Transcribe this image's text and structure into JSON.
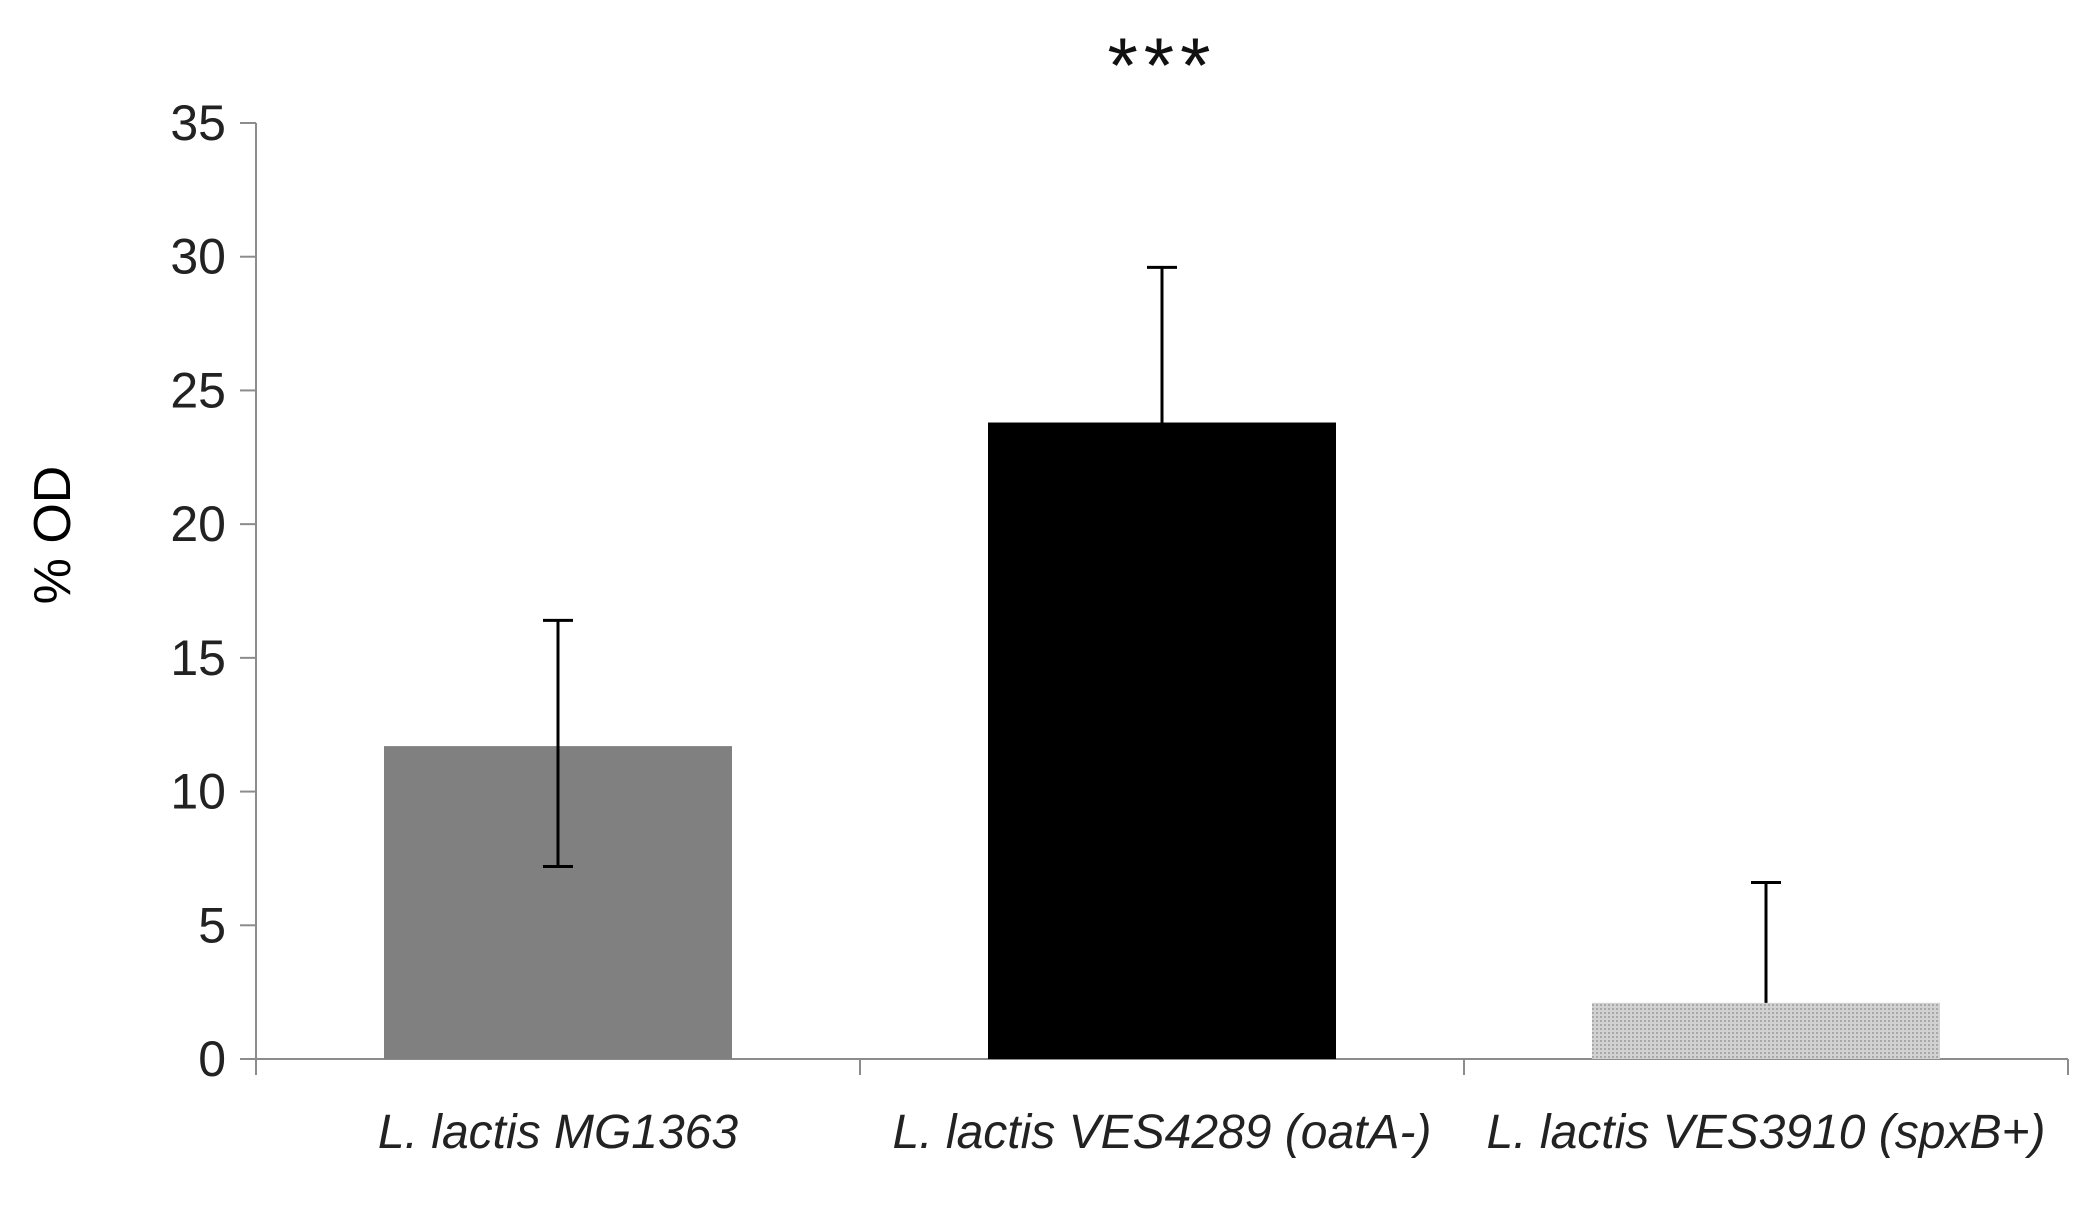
{
  "chart_data": {
    "type": "bar",
    "title": "",
    "xlabel": "",
    "ylabel": "% OD",
    "ylim": [
      0,
      35
    ],
    "yticks": [
      0,
      5,
      10,
      15,
      20,
      25,
      30,
      35
    ],
    "grid": false,
    "legend": "none",
    "categories": [
      "L. lactis MG1363",
      "L. lactis VES4289 (oatA-)",
      "L. lactis VES3910 (spxB+)"
    ],
    "values": [
      11.7,
      23.8,
      2.1
    ],
    "error_upper": [
      4.7,
      5.8,
      4.5
    ],
    "error_lower": [
      4.5,
      0,
      0
    ],
    "bar_colors": [
      "#808080",
      "#000000",
      "#c8c8c8"
    ],
    "annotations": [
      {
        "category_index": 1,
        "text": "***"
      }
    ]
  }
}
